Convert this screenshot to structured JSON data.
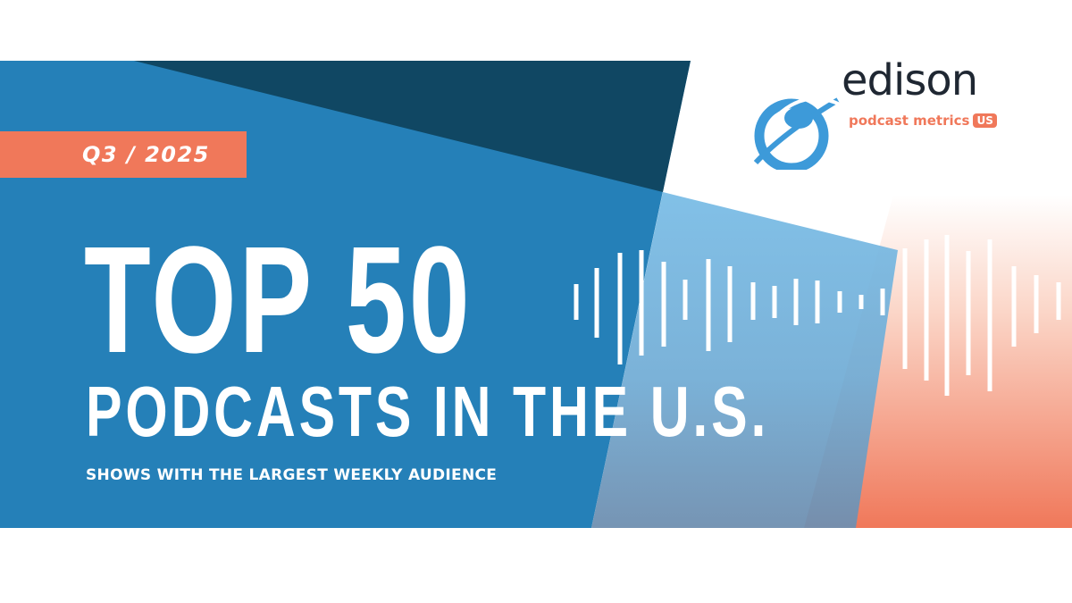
{
  "banner": {
    "quarter_label": "Q3 / 2025",
    "headline": "TOP 50",
    "subheadline": "PODCASTS IN THE U.S.",
    "tagline": "SHOWS WITH THE LARGEST WEEKLY AUDIENCE"
  },
  "logo": {
    "name": "edison",
    "subtitle": "podcast metrics",
    "badge": "US",
    "icon": "lightbulb-orbit-icon"
  },
  "colors": {
    "brand_blue": "#2580b8",
    "dark_navy": "#104763",
    "light_blue": "#7bbde6",
    "accent_orange": "#f0785a",
    "logo_blue": "#3d9ad9",
    "text_dark": "#1f2732"
  }
}
